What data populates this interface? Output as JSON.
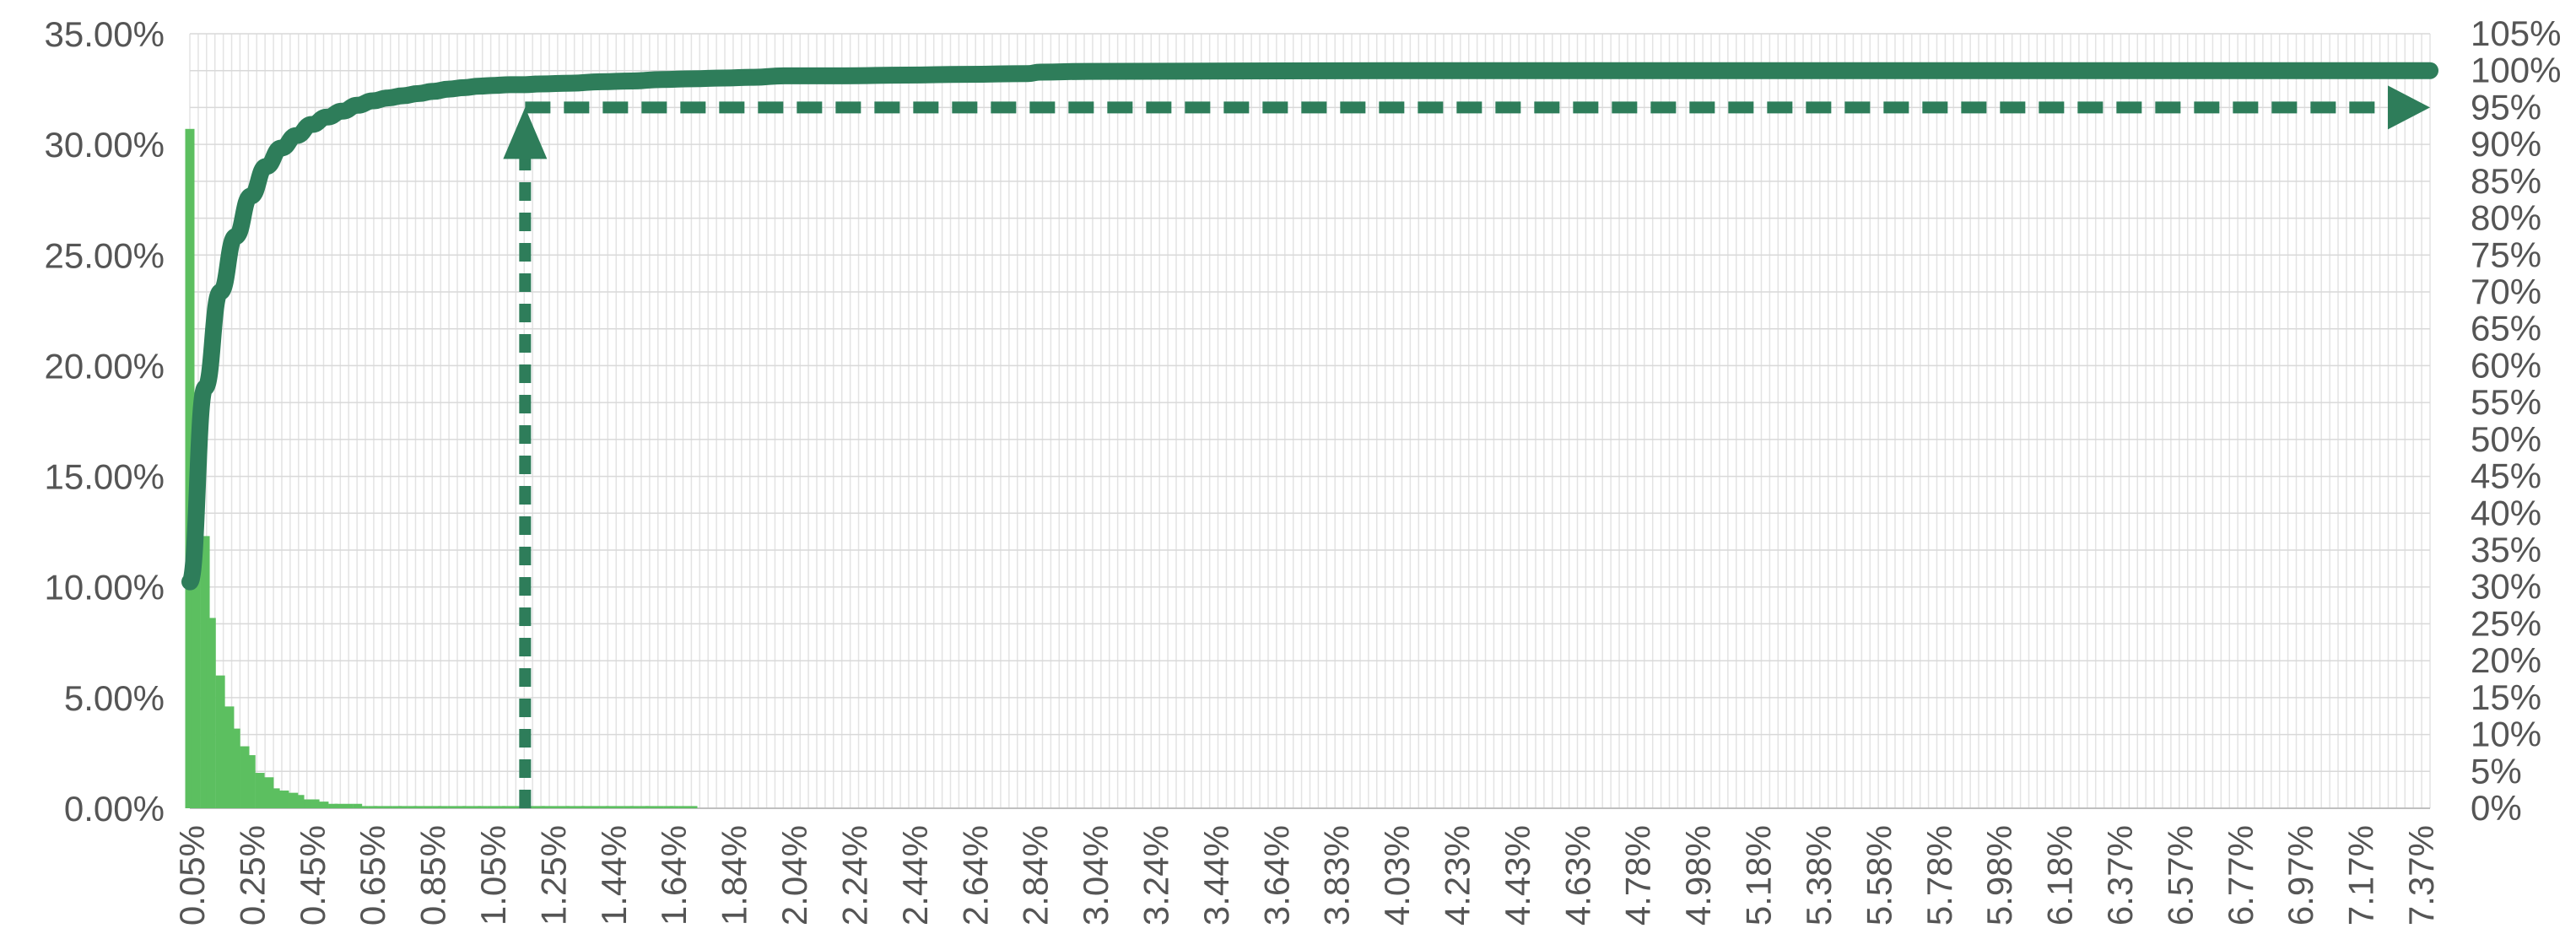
{
  "chart_data": {
    "type": "bar+line",
    "title": "",
    "xlabel": "",
    "ylabel": "",
    "y2label": "",
    "grid": true,
    "legend": "none",
    "x_tick_labels": [
      "0.05%",
      "0.25%",
      "0.45%",
      "0.65%",
      "0.85%",
      "1.05%",
      "1.25%",
      "1.44%",
      "1.64%",
      "1.84%",
      "2.04%",
      "2.24%",
      "2.44%",
      "2.64%",
      "2.84%",
      "3.04%",
      "3.24%",
      "3.44%",
      "3.64%",
      "3.83%",
      "4.03%",
      "4.23%",
      "4.43%",
      "4.63%",
      "4.78%",
      "4.98%",
      "5.18%",
      "5.38%",
      "5.58%",
      "5.78%",
      "5.98%",
      "6.18%",
      "6.37%",
      "6.57%",
      "6.77%",
      "6.97%",
      "7.17%",
      "7.37%"
    ],
    "y_left": {
      "ylim": [
        0,
        0.35
      ],
      "ticks": [
        "0.00%",
        "5.00%",
        "10.00%",
        "15.00%",
        "20.00%",
        "25.00%",
        "30.00%",
        "35.00%"
      ]
    },
    "y_right": {
      "ylim": [
        0,
        1.05
      ],
      "ticks": [
        "0%",
        "5%",
        "10%",
        "15%",
        "20%",
        "25%",
        "30%",
        "35%",
        "40%",
        "45%",
        "50%",
        "55%",
        "60%",
        "65%",
        "70%",
        "75%",
        "80%",
        "85%",
        "90%",
        "95%",
        "100%",
        "105%"
      ]
    },
    "frequency": {
      "x": [
        0.05,
        0.07,
        0.1,
        0.12,
        0.15,
        0.18,
        0.2,
        0.23,
        0.25,
        0.28,
        0.31,
        0.33,
        0.36,
        0.39,
        0.41,
        0.44,
        0.46,
        0.49,
        0.52,
        0.54,
        0.57,
        0.6,
        0.62,
        0.65,
        0.67,
        0.7,
        0.73,
        0.75,
        0.78,
        0.8,
        0.83,
        0.86,
        0.88,
        0.91,
        0.94,
        0.96,
        0.99,
        1.01,
        1.04,
        1.07,
        1.09,
        1.12,
        1.15,
        1.17,
        1.2,
        1.22,
        1.25,
        1.28,
        1.3,
        1.33,
        1.35,
        1.38,
        1.41,
        1.43,
        1.46,
        1.49,
        1.51,
        1.54,
        1.56,
        1.59,
        1.62,
        1.64,
        1.67,
        1.7
      ],
      "values": [
        0.307,
        0.145,
        0.123,
        0.086,
        0.06,
        0.046,
        0.036,
        0.028,
        0.024,
        0.016,
        0.014,
        0.009,
        0.008,
        0.007,
        0.006,
        0.004,
        0.004,
        0.003,
        0.002,
        0.002,
        0.002,
        0.002,
        0.001,
        0.001,
        0.001,
        0.001,
        0.001,
        0.001,
        0.001,
        0.001,
        0.001,
        0.001,
        0.001,
        0.001,
        0.001,
        0.001,
        0.001,
        0.001,
        0.001,
        0.001,
        0.001,
        0.001,
        0.001,
        0.001,
        0.001,
        0.001,
        0.001,
        0.001,
        0.001,
        0.001,
        0.001,
        0.001,
        0.001,
        0.001,
        0.001,
        0.001,
        0.001,
        0.001,
        0.001,
        0.001,
        0.001,
        0.001,
        0.001,
        0.001
      ],
      "color": "#5cbf60"
    },
    "cumulative": {
      "x": [
        0.05,
        0.1,
        0.15,
        0.2,
        0.25,
        0.3,
        0.35,
        0.4,
        0.45,
        0.5,
        0.55,
        0.6,
        0.65,
        0.7,
        0.75,
        0.8,
        0.85,
        0.9,
        0.95,
        1.0,
        1.05,
        1.1,
        1.15,
        1.2,
        1.3,
        1.4,
        1.5,
        1.6,
        1.7,
        1.8,
        1.9,
        2.0,
        2.2,
        2.4,
        2.6,
        2.8,
        2.84,
        3.0,
        4.0,
        5.0,
        6.0,
        7.0,
        7.4
      ],
      "values": [
        0.307,
        0.57,
        0.7,
        0.775,
        0.83,
        0.87,
        0.895,
        0.912,
        0.927,
        0.937,
        0.945,
        0.953,
        0.959,
        0.963,
        0.966,
        0.969,
        0.972,
        0.975,
        0.977,
        0.979,
        0.98,
        0.981,
        0.981,
        0.982,
        0.983,
        0.985,
        0.986,
        0.988,
        0.989,
        0.99,
        0.991,
        0.993,
        0.993,
        0.994,
        0.995,
        0.996,
        0.998,
        0.999,
        1.0,
        1.0,
        1.0,
        1.0,
        1.0
      ],
      "color": "#2e7d5a"
    },
    "annotations": [
      {
        "type": "dashed-arrow-vertical",
        "x": 1.15,
        "y_from": 0,
        "y_to_cumulative": 0.95
      },
      {
        "type": "dashed-arrow-horizontal",
        "y_cumulative": 0.95,
        "x_from": 1.15,
        "x_to": 7.4
      }
    ]
  }
}
